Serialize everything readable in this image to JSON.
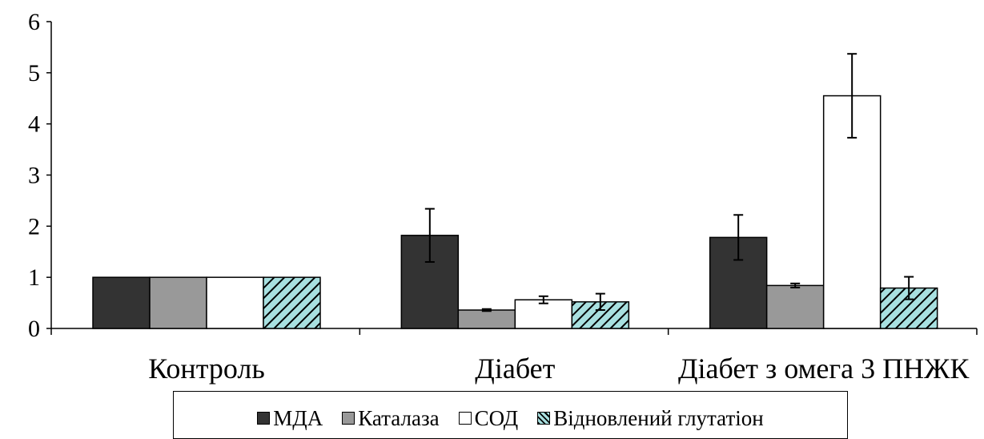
{
  "chart_data": {
    "type": "bar",
    "categories": [
      "Контроль",
      "Діабет",
      "Діабет з омега 3 ПНЖК"
    ],
    "series": [
      {
        "name": "МДА",
        "values": [
          1,
          1.82,
          1.78
        ],
        "errors": [
          0,
          0.52,
          0.44
        ],
        "color": "#333333",
        "pattern": "solid"
      },
      {
        "name": "Каталаза",
        "values": [
          1,
          0.36,
          0.84
        ],
        "errors": [
          0,
          0.02,
          0.04
        ],
        "color": "#999999",
        "pattern": "solid"
      },
      {
        "name": "СОД",
        "values": [
          1,
          0.56,
          4.55
        ],
        "errors": [
          0,
          0.07,
          0.82
        ],
        "color": "#ffffff",
        "pattern": "solid"
      },
      {
        "name": "Відновлений глутатіон",
        "values": [
          1,
          0.52,
          0.79
        ],
        "errors": [
          0,
          0.16,
          0.22
        ],
        "color": "#a8e0e0",
        "pattern": "diagonal-hatch"
      }
    ],
    "ylim": [
      0,
      6
    ],
    "yticks": [
      0,
      1,
      2,
      3,
      4,
      5,
      6
    ],
    "grid": false,
    "legend_position": "bottom"
  }
}
